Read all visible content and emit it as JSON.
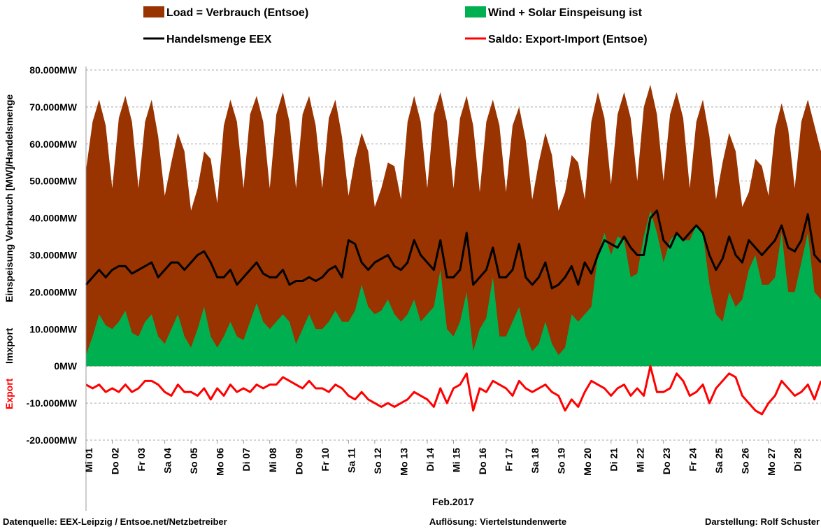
{
  "chart_data": {
    "type": "area-line",
    "y_label_parts": [
      "Einspeisung Verbrauch  [MW]/Handelsmenge",
      "Imxport",
      "Export"
    ],
    "x_label": "Feb.2017",
    "footer": [
      "Datenquelle:  EEX-Leipzig  /  Entsoe.net/Netzbetreiber",
      "Auflösung: Viertelstundenwerte",
      "Darstellung: Rolf Schuster"
    ],
    "x": [
      1,
      1.25,
      1.5,
      1.75,
      2,
      2.25,
      2.5,
      2.75,
      3,
      3.25,
      3.5,
      3.75,
      4,
      4.25,
      4.5,
      4.75,
      5,
      5.25,
      5.5,
      5.75,
      6,
      6.25,
      6.5,
      6.75,
      7,
      7.25,
      7.5,
      7.75,
      8,
      8.25,
      8.5,
      8.75,
      9,
      9.25,
      9.5,
      9.75,
      10,
      10.25,
      10.5,
      10.75,
      11,
      11.25,
      11.5,
      11.75,
      12,
      12.25,
      12.5,
      12.75,
      13,
      13.25,
      13.5,
      13.75,
      14,
      14.25,
      14.5,
      14.75,
      15,
      15.25,
      15.5,
      15.75,
      16,
      16.25,
      16.5,
      16.75,
      17,
      17.25,
      17.5,
      17.75,
      18,
      18.25,
      18.5,
      18.75,
      19,
      19.25,
      19.5,
      19.75,
      20,
      20.25,
      20.5,
      20.75,
      21,
      21.25,
      21.5,
      21.75,
      22,
      22.25,
      22.5,
      22.75,
      23,
      23.25,
      23.5,
      23.75,
      24,
      24.25,
      24.5,
      24.75,
      25,
      25.25,
      25.5,
      25.75,
      26,
      26.25,
      26.5,
      26.75,
      27,
      27.25,
      27.5,
      27.75,
      28,
      28.25,
      28.5,
      28.75,
      29
    ],
    "series": [
      {
        "name": "Load =  Verbrauch (Entsoe)",
        "color": "#993300",
        "mark": "area",
        "values": [
          53000,
          66000,
          72000,
          65000,
          48000,
          67000,
          73000,
          66000,
          48000,
          66000,
          72000,
          62000,
          46000,
          55000,
          63000,
          58000,
          42000,
          48000,
          58000,
          56000,
          44000,
          65000,
          72000,
          66000,
          48000,
          68000,
          73000,
          66000,
          48000,
          68000,
          74000,
          66000,
          48000,
          68000,
          73000,
          65000,
          48000,
          67000,
          72000,
          62000,
          46000,
          56000,
          63000,
          58000,
          43000,
          48000,
          55000,
          54000,
          45000,
          66000,
          73000,
          66000,
          48000,
          68000,
          74000,
          66000,
          48000,
          67000,
          73000,
          65000,
          47000,
          66000,
          72000,
          65000,
          47000,
          65000,
          70000,
          61000,
          45000,
          55000,
          63000,
          57000,
          42000,
          47000,
          57000,
          55000,
          45000,
          66000,
          74000,
          67000,
          49000,
          68000,
          74000,
          67000,
          50000,
          70000,
          76000,
          68000,
          50000,
          68000,
          74000,
          67000,
          48000,
          66000,
          72000,
          62000,
          45000,
          55000,
          63000,
          58000,
          43000,
          47000,
          56000,
          54000,
          46000,
          64000,
          71000,
          64000,
          48000,
          66000,
          72000,
          65000,
          58000
        ]
      },
      {
        "name": "Wind + Solar Einspeisung ist",
        "color": "#00b050",
        "mark": "area",
        "values": [
          3000,
          8000,
          14000,
          11000,
          10000,
          12000,
          15000,
          9000,
          8000,
          12000,
          14000,
          8000,
          6000,
          10000,
          14000,
          8000,
          5000,
          10000,
          16000,
          8000,
          5000,
          8000,
          12000,
          8000,
          7000,
          12000,
          17000,
          12000,
          10000,
          12000,
          14000,
          12000,
          6000,
          10000,
          14000,
          10000,
          10000,
          12000,
          15000,
          12000,
          12000,
          15000,
          22000,
          16000,
          14000,
          15000,
          18000,
          14000,
          12000,
          14000,
          18000,
          12000,
          14000,
          16000,
          26000,
          10000,
          8000,
          12000,
          20000,
          4000,
          10000,
          13000,
          24000,
          8000,
          8000,
          12000,
          16000,
          8000,
          4000,
          6000,
          12000,
          6000,
          3000,
          5000,
          14000,
          12000,
          14000,
          16000,
          30000,
          36000,
          30000,
          35000,
          34000,
          24000,
          25000,
          35000,
          42000,
          36000,
          28000,
          34000,
          36000,
          34000,
          34000,
          38000,
          36000,
          22000,
          14000,
          12000,
          20000,
          16000,
          18000,
          26000,
          30000,
          22000,
          22000,
          24000,
          36000,
          20000,
          20000,
          28000,
          36000,
          20000,
          18000
        ]
      },
      {
        "name": "Handelsmenge EEX",
        "color": "#000000",
        "mark": "line",
        "values": [
          22000,
          24000,
          26000,
          24000,
          26000,
          27000,
          27000,
          25000,
          26000,
          27000,
          28000,
          24000,
          26000,
          28000,
          28000,
          26000,
          28000,
          30000,
          31000,
          28000,
          24000,
          24000,
          26000,
          22000,
          24000,
          26000,
          28000,
          25000,
          24000,
          24000,
          26000,
          22000,
          23000,
          23000,
          24000,
          23000,
          24000,
          26000,
          27000,
          24000,
          34000,
          33000,
          28000,
          26000,
          28000,
          29000,
          30000,
          27000,
          26000,
          28000,
          34000,
          30000,
          28000,
          26000,
          34000,
          24000,
          24000,
          26000,
          36000,
          22000,
          24000,
          26000,
          32000,
          24000,
          24000,
          26000,
          33000,
          24000,
          22000,
          24000,
          28000,
          21000,
          22000,
          24000,
          27000,
          22000,
          28000,
          25000,
          30000,
          34000,
          33000,
          32000,
          35000,
          32000,
          30000,
          30000,
          40000,
          42000,
          34000,
          32000,
          36000,
          34000,
          36000,
          38000,
          36000,
          30000,
          26000,
          29000,
          35000,
          30000,
          28000,
          34000,
          32000,
          30000,
          32000,
          34000,
          38000,
          32000,
          31000,
          34000,
          41000,
          30000,
          28000
        ]
      },
      {
        "name": "Saldo: Export-Import (Entsoe)",
        "color": "#ff0000",
        "mark": "line",
        "values": [
          -5000,
          -6000,
          -5000,
          -7000,
          -6000,
          -7000,
          -5000,
          -7000,
          -6000,
          -4000,
          -4000,
          -5000,
          -7000,
          -8000,
          -5000,
          -7000,
          -7000,
          -8000,
          -6000,
          -9000,
          -6000,
          -8000,
          -5000,
          -7000,
          -6000,
          -7000,
          -5000,
          -6000,
          -5000,
          -5000,
          -3000,
          -4000,
          -5000,
          -6000,
          -4000,
          -6000,
          -6000,
          -7000,
          -5000,
          -6000,
          -8000,
          -9000,
          -7000,
          -9000,
          -10000,
          -11000,
          -10000,
          -11000,
          -10000,
          -9000,
          -7000,
          -8000,
          -9000,
          -11000,
          -6000,
          -10000,
          -6000,
          -5000,
          -2000,
          -12000,
          -6000,
          -7000,
          -4000,
          -5000,
          -6000,
          -8000,
          -4000,
          -6000,
          -7000,
          -6000,
          -5000,
          -7000,
          -8000,
          -12000,
          -9000,
          -11000,
          -7000,
          -4000,
          -5000,
          -6000,
          -8000,
          -6000,
          -5000,
          -8000,
          -6000,
          -8000,
          0,
          -7000,
          -7000,
          -6000,
          -2000,
          -4000,
          -8000,
          -7000,
          -5000,
          -10000,
          -6000,
          -4000,
          -2000,
          -3000,
          -8000,
          -10000,
          -12000,
          -13000,
          -10000,
          -8000,
          -4000,
          -6000,
          -8000,
          -7000,
          -5000,
          -9000,
          -4000
        ]
      }
    ],
    "xlim": [
      1,
      29
    ],
    "xticks": [
      {
        "value": 1,
        "label": "Mi 01"
      },
      {
        "value": 2,
        "label": "Do 02"
      },
      {
        "value": 3,
        "label": "Fr 03"
      },
      {
        "value": 4,
        "label": "Sa 04"
      },
      {
        "value": 5,
        "label": "So 05"
      },
      {
        "value": 6,
        "label": "Mo 06"
      },
      {
        "value": 7,
        "label": "Di 07"
      },
      {
        "value": 8,
        "label": "Mi 08"
      },
      {
        "value": 9,
        "label": "Do 09"
      },
      {
        "value": 10,
        "label": "Fr 10"
      },
      {
        "value": 11,
        "label": "Sa 11"
      },
      {
        "value": 12,
        "label": "So 12"
      },
      {
        "value": 13,
        "label": "Mo 13"
      },
      {
        "value": 14,
        "label": "Di 14"
      },
      {
        "value": 15,
        "label": "Mi 15"
      },
      {
        "value": 16,
        "label": "Do 16"
      },
      {
        "value": 17,
        "label": "Fr 17"
      },
      {
        "value": 18,
        "label": "Sa 18"
      },
      {
        "value": 19,
        "label": "So 19"
      },
      {
        "value": 20,
        "label": "Mo 20"
      },
      {
        "value": 21,
        "label": "Di 21"
      },
      {
        "value": 22,
        "label": "Mi 22"
      },
      {
        "value": 23,
        "label": "Do 23"
      },
      {
        "value": 24,
        "label": "Fr 24"
      },
      {
        "value": 25,
        "label": "Sa 25"
      },
      {
        "value": 26,
        "label": "So 26"
      },
      {
        "value": 27,
        "label": "Mo 27"
      },
      {
        "value": 28,
        "label": "Di 28"
      }
    ],
    "ylim": [
      -20000,
      80000
    ],
    "yticks": [
      {
        "value": -20000,
        "label": "-20.000MW"
      },
      {
        "value": -10000,
        "label": "-10.000MW"
      },
      {
        "value": 0,
        "label": "0MW"
      },
      {
        "value": 10000,
        "label": "10.000MW"
      },
      {
        "value": 20000,
        "label": "20.000MW"
      },
      {
        "value": 30000,
        "label": "30.000MW"
      },
      {
        "value": 40000,
        "label": "40.000MW"
      },
      {
        "value": 50000,
        "label": "50.000MW"
      },
      {
        "value": 60000,
        "label": "60.000MW"
      },
      {
        "value": 70000,
        "label": "70.000MW"
      },
      {
        "value": 80000,
        "label": "80.000MW"
      }
    ],
    "grid": true
  }
}
